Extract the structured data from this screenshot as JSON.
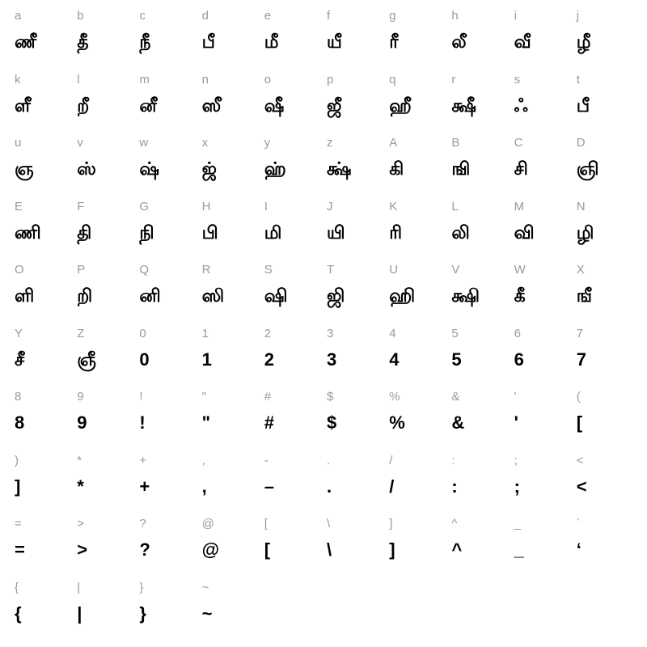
{
  "chart": {
    "type": "character-map",
    "columns": 10,
    "rows": 10,
    "background_color": "#ffffff",
    "key_color": "#999999",
    "glyph_color": "#000000",
    "key_fontsize": 15,
    "glyph_fontsize": 22,
    "cells": [
      {
        "key": "a",
        "glyph": "ணீ"
      },
      {
        "key": "b",
        "glyph": "தீ"
      },
      {
        "key": "c",
        "glyph": "நீ"
      },
      {
        "key": "d",
        "glyph": "பீ"
      },
      {
        "key": "e",
        "glyph": "மீ"
      },
      {
        "key": "f",
        "glyph": "யீ"
      },
      {
        "key": "g",
        "glyph": "ரீ"
      },
      {
        "key": "h",
        "glyph": "லீ"
      },
      {
        "key": "i",
        "glyph": "வீ"
      },
      {
        "key": "j",
        "glyph": "ழீ"
      },
      {
        "key": "k",
        "glyph": "ளீ"
      },
      {
        "key": "l",
        "glyph": "றீ"
      },
      {
        "key": "m",
        "glyph": "னீ"
      },
      {
        "key": "n",
        "glyph": "ஸீ"
      },
      {
        "key": "o",
        "glyph": "ஷீ"
      },
      {
        "key": "p",
        "glyph": "ஜீ"
      },
      {
        "key": "q",
        "glyph": "ஹீ"
      },
      {
        "key": "r",
        "glyph": "க்ஷீ"
      },
      {
        "key": "s",
        "glyph": "ஃ"
      },
      {
        "key": "t",
        "glyph": "பீ"
      },
      {
        "key": "u",
        "glyph": "ஞ"
      },
      {
        "key": "v",
        "glyph": "ஸ்"
      },
      {
        "key": "w",
        "glyph": "ஷ்"
      },
      {
        "key": "x",
        "glyph": "ஜ்"
      },
      {
        "key": "y",
        "glyph": "ஹ்"
      },
      {
        "key": "z",
        "glyph": "க்ஷ்"
      },
      {
        "key": "A",
        "glyph": "கி"
      },
      {
        "key": "B",
        "glyph": "ஙி"
      },
      {
        "key": "C",
        "glyph": "சி"
      },
      {
        "key": "D",
        "glyph": "ஞி"
      },
      {
        "key": "E",
        "glyph": "ணி"
      },
      {
        "key": "F",
        "glyph": "தி"
      },
      {
        "key": "G",
        "glyph": "நி"
      },
      {
        "key": "H",
        "glyph": "பி"
      },
      {
        "key": "I",
        "glyph": "மி"
      },
      {
        "key": "J",
        "glyph": "யி"
      },
      {
        "key": "K",
        "glyph": "ரி"
      },
      {
        "key": "L",
        "glyph": "லி"
      },
      {
        "key": "M",
        "glyph": "வி"
      },
      {
        "key": "N",
        "glyph": "ழி"
      },
      {
        "key": "O",
        "glyph": "ளி"
      },
      {
        "key": "P",
        "glyph": "றி"
      },
      {
        "key": "Q",
        "glyph": "னி"
      },
      {
        "key": "R",
        "glyph": "ஸி"
      },
      {
        "key": "S",
        "glyph": "ஷி"
      },
      {
        "key": "T",
        "glyph": "ஜி"
      },
      {
        "key": "U",
        "glyph": "ஹி"
      },
      {
        "key": "V",
        "glyph": "க்ஷி"
      },
      {
        "key": "W",
        "glyph": "கீ"
      },
      {
        "key": "X",
        "glyph": "ஙீ"
      },
      {
        "key": "Y",
        "glyph": "சீ"
      },
      {
        "key": "Z",
        "glyph": "ஞீ"
      },
      {
        "key": "0",
        "glyph": "0"
      },
      {
        "key": "1",
        "glyph": "1"
      },
      {
        "key": "2",
        "glyph": "2"
      },
      {
        "key": "3",
        "glyph": "3"
      },
      {
        "key": "4",
        "glyph": "4"
      },
      {
        "key": "5",
        "glyph": "5"
      },
      {
        "key": "6",
        "glyph": "6"
      },
      {
        "key": "7",
        "glyph": "7"
      },
      {
        "key": "8",
        "glyph": "8"
      },
      {
        "key": "9",
        "glyph": "9"
      },
      {
        "key": "!",
        "glyph": "!"
      },
      {
        "key": "\"",
        "glyph": "\""
      },
      {
        "key": "#",
        "glyph": "#"
      },
      {
        "key": "$",
        "glyph": "$"
      },
      {
        "key": "%",
        "glyph": "%"
      },
      {
        "key": "&",
        "glyph": "&"
      },
      {
        "key": "'",
        "glyph": "'"
      },
      {
        "key": "(",
        "glyph": "["
      },
      {
        "key": ")",
        "glyph": "]"
      },
      {
        "key": "*",
        "glyph": "*"
      },
      {
        "key": "+",
        "glyph": "+"
      },
      {
        "key": ",",
        "glyph": ","
      },
      {
        "key": "-",
        "glyph": "–"
      },
      {
        "key": ".",
        "glyph": "."
      },
      {
        "key": "/",
        "glyph": "/"
      },
      {
        "key": ":",
        "glyph": ":"
      },
      {
        "key": ";",
        "glyph": ";"
      },
      {
        "key": "<",
        "glyph": "<"
      },
      {
        "key": "=",
        "glyph": "="
      },
      {
        "key": ">",
        "glyph": ">"
      },
      {
        "key": "?",
        "glyph": "?"
      },
      {
        "key": "@",
        "glyph": "@"
      },
      {
        "key": "[",
        "glyph": "["
      },
      {
        "key": "\\",
        "glyph": "\\"
      },
      {
        "key": "]",
        "glyph": "]"
      },
      {
        "key": "^",
        "glyph": "^"
      },
      {
        "key": "_",
        "glyph": "_"
      },
      {
        "key": "`",
        "glyph": "‘"
      },
      {
        "key": "{",
        "glyph": "{"
      },
      {
        "key": "|",
        "glyph": "|"
      },
      {
        "key": "}",
        "glyph": "}"
      },
      {
        "key": "~",
        "glyph": "~"
      }
    ]
  }
}
